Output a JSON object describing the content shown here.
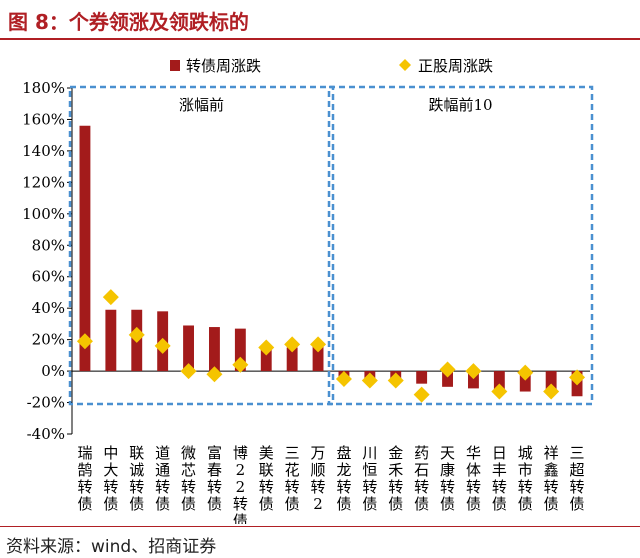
{
  "title": "图 8：个券领涨及领跌标的",
  "source": "资料来源：wind、招商证券",
  "colors": {
    "bar": "#a31b1b",
    "diamond": "#f5c400",
    "frame": "#4a90d0",
    "title": "#b01f24"
  },
  "chart_data": {
    "type": "bar",
    "title": "",
    "xlabel": "",
    "ylabel": "",
    "ylim": [
      -40,
      180
    ],
    "ytick_step": 20,
    "legend": {
      "position": "top",
      "entries": [
        "转债周涨跌",
        "正股周涨跌"
      ]
    },
    "groups": [
      {
        "label": "涨幅前",
        "start": 0,
        "end": 9
      },
      {
        "label": "跌幅前10",
        "start": 10,
        "end": 19
      }
    ],
    "categories": [
      "瑞鹄转债",
      "中大转债",
      "联诚转债",
      "道通转债",
      "微芯转债",
      "富春转债",
      "博22转债",
      "美联转债",
      "三花转债",
      "万顺转2",
      "盘龙转债",
      "川恒转债",
      "金禾转债",
      "药石转债",
      "天康转债",
      "华体转债",
      "日丰转债",
      "城市转债",
      "祥鑫转债",
      "三超转债"
    ],
    "series": [
      {
        "name": "转债周涨跌",
        "kind": "bar",
        "values": [
          156,
          39,
          39,
          38,
          29,
          28,
          27,
          16,
          15,
          17,
          -6,
          -5,
          -5,
          -8,
          -10,
          -11,
          -13,
          -13,
          -12,
          -16
        ]
      },
      {
        "name": "正股周涨跌",
        "kind": "diamond",
        "values": [
          19,
          47,
          23,
          16,
          0,
          -2,
          4,
          15,
          17,
          17,
          -5,
          -6,
          -6,
          -15,
          1,
          0,
          -13,
          -1,
          -13,
          -4
        ]
      }
    ]
  }
}
